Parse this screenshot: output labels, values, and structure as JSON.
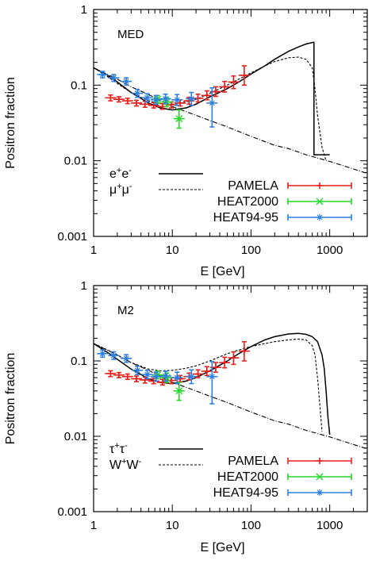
{
  "chart_data": [
    {
      "type": "line",
      "panel_label": "MED",
      "xlabel": "E [GeV]",
      "ylabel": "Positron fraction",
      "xscale": "log",
      "yscale": "log",
      "xlim": [
        1,
        3000
      ],
      "ylim": [
        0.001,
        1
      ],
      "x_ticks": [
        1,
        10,
        100,
        1000
      ],
      "x_tick_labels": [
        "1",
        "10",
        "100",
        "1000"
      ],
      "y_ticks": [
        0.001,
        0.01,
        0.1,
        1
      ],
      "y_tick_labels": [
        "0.001",
        "0.01",
        "0.1",
        "1"
      ],
      "legend_left_position": "bottom-left",
      "legend_right_position": "bottom-right",
      "model_legend": [
        {
          "label": "e⁺e⁻",
          "base1": "e",
          "sup1": "+",
          "base2": "e",
          "sup2": "-",
          "style": "solid"
        },
        {
          "label": "μ⁺μ⁻",
          "base1": "μ",
          "sup1": "+",
          "base2": "μ",
          "sup2": "-",
          "style": "dashed"
        }
      ],
      "curves": [
        {
          "style": "solid",
          "x": [
            1,
            1.5,
            2,
            3,
            5,
            7,
            10,
            15,
            20,
            30,
            50,
            70,
            100,
            150,
            200,
            300,
            400,
            500,
            630,
            630.5,
            1000
          ],
          "y": [
            0.17,
            0.135,
            0.11,
            0.08,
            0.058,
            0.05,
            0.047,
            0.05,
            0.056,
            0.07,
            0.09,
            0.11,
            0.14,
            0.18,
            0.22,
            0.28,
            0.32,
            0.35,
            0.37,
            0.012,
            0.012
          ]
        },
        {
          "style": "dashed",
          "x": [
            1,
            1.5,
            2,
            3,
            5,
            7,
            10,
            15,
            20,
            30,
            50,
            70,
            100,
            150,
            200,
            300,
            400,
            500,
            600,
            650,
            700,
            800,
            900
          ],
          "y": [
            0.17,
            0.13,
            0.105,
            0.08,
            0.062,
            0.057,
            0.056,
            0.06,
            0.065,
            0.078,
            0.1,
            0.12,
            0.145,
            0.18,
            0.205,
            0.23,
            0.235,
            0.22,
            0.17,
            0.09,
            0.04,
            0.015,
            0.01
          ]
        },
        {
          "style": "dashdot",
          "x": [
            1,
            2,
            3,
            5,
            10,
            20,
            30,
            50,
            100,
            200,
            300,
            500,
            1000,
            2000,
            3000
          ],
          "y": [
            0.17,
            0.12,
            0.095,
            0.075,
            0.052,
            0.04,
            0.034,
            0.028,
            0.021,
            0.016,
            0.0145,
            0.012,
            0.0098,
            0.0078,
            0.0068
          ]
        }
      ],
      "series": [
        {
          "name": "PAMELA",
          "color": "#e8201c",
          "marker": "plus",
          "points": [
            {
              "x": 1.64,
              "y": 0.068,
              "lo": 0.062,
              "hi": 0.074
            },
            {
              "x": 2.1,
              "y": 0.065,
              "lo": 0.06,
              "hi": 0.07
            },
            {
              "x": 2.7,
              "y": 0.062,
              "lo": 0.057,
              "hi": 0.067
            },
            {
              "x": 3.5,
              "y": 0.058,
              "lo": 0.053,
              "hi": 0.063
            },
            {
              "x": 4.5,
              "y": 0.056,
              "lo": 0.051,
              "hi": 0.061
            },
            {
              "x": 5.8,
              "y": 0.054,
              "lo": 0.05,
              "hi": 0.059
            },
            {
              "x": 7.5,
              "y": 0.052,
              "lo": 0.048,
              "hi": 0.057
            },
            {
              "x": 9.7,
              "y": 0.055,
              "lo": 0.05,
              "hi": 0.06
            },
            {
              "x": 12.6,
              "y": 0.058,
              "lo": 0.053,
              "hi": 0.064
            },
            {
              "x": 16.3,
              "y": 0.062,
              "lo": 0.056,
              "hi": 0.069
            },
            {
              "x": 21.2,
              "y": 0.067,
              "lo": 0.06,
              "hi": 0.076
            },
            {
              "x": 27.5,
              "y": 0.073,
              "lo": 0.064,
              "hi": 0.084
            },
            {
              "x": 35.6,
              "y": 0.082,
              "lo": 0.071,
              "hi": 0.095
            },
            {
              "x": 46.2,
              "y": 0.095,
              "lo": 0.081,
              "hi": 0.112
            },
            {
              "x": 60,
              "y": 0.11,
              "lo": 0.09,
              "hi": 0.132
            },
            {
              "x": 82,
              "y": 0.135,
              "lo": 0.1,
              "hi": 0.18
            }
          ]
        },
        {
          "name": "HEAT2000",
          "color": "#27d62a",
          "marker": "cross",
          "points": [
            {
              "x": 6.5,
              "y": 0.065,
              "lo": 0.058,
              "hi": 0.073
            },
            {
              "x": 8.5,
              "y": 0.06,
              "lo": 0.052,
              "hi": 0.069
            },
            {
              "x": 12.2,
              "y": 0.036,
              "lo": 0.027,
              "hi": 0.047
            }
          ]
        },
        {
          "name": "HEAT94-95",
          "color": "#2d7fe0",
          "marker": "star",
          "points": [
            {
              "x": 1.3,
              "y": 0.138,
              "lo": 0.125,
              "hi": 0.152
            },
            {
              "x": 1.8,
              "y": 0.125,
              "lo": 0.112,
              "hi": 0.138
            },
            {
              "x": 2.6,
              "y": 0.112,
              "lo": 0.1,
              "hi": 0.125
            },
            {
              "x": 3.6,
              "y": 0.078,
              "lo": 0.069,
              "hi": 0.088
            },
            {
              "x": 4.8,
              "y": 0.068,
              "lo": 0.06,
              "hi": 0.077
            },
            {
              "x": 6.2,
              "y": 0.064,
              "lo": 0.056,
              "hi": 0.073
            },
            {
              "x": 8.2,
              "y": 0.066,
              "lo": 0.057,
              "hi": 0.076
            },
            {
              "x": 11.5,
              "y": 0.064,
              "lo": 0.054,
              "hi": 0.075
            },
            {
              "x": 17.5,
              "y": 0.066,
              "lo": 0.054,
              "hi": 0.08
            },
            {
              "x": 32,
              "y": 0.058,
              "lo": 0.028,
              "hi": 0.092
            }
          ]
        }
      ]
    },
    {
      "type": "line",
      "panel_label": "M2",
      "xlabel": "E [GeV]",
      "ylabel": "Positron fraction",
      "xscale": "log",
      "yscale": "log",
      "xlim": [
        1,
        3000
      ],
      "ylim": [
        0.001,
        1
      ],
      "x_ticks": [
        1,
        10,
        100,
        1000
      ],
      "x_tick_labels": [
        "1",
        "10",
        "100",
        "1000"
      ],
      "y_ticks": [
        0.001,
        0.01,
        0.1,
        1
      ],
      "y_tick_labels": [
        "0.001",
        "0.01",
        "0.1",
        "1"
      ],
      "legend_left_position": "bottom-left",
      "legend_right_position": "bottom-right",
      "model_legend": [
        {
          "label": "τ⁺τ⁻",
          "base1": "τ",
          "sup1": "+",
          "base2": "τ",
          "sup2": "-",
          "style": "solid"
        },
        {
          "label": "W⁺W⁻",
          "base1": "W",
          "sup1": "+",
          "base2": "W",
          "sup2": "-",
          "style": "dashed"
        }
      ],
      "curves": [
        {
          "style": "solid",
          "x": [
            1,
            1.5,
            2,
            3,
            5,
            7,
            10,
            15,
            20,
            30,
            50,
            70,
            100,
            150,
            200,
            300,
            400,
            500,
            600,
            700,
            800,
            850,
            900,
            950,
            1000
          ],
          "y": [
            0.17,
            0.13,
            0.105,
            0.078,
            0.058,
            0.052,
            0.05,
            0.054,
            0.06,
            0.074,
            0.1,
            0.125,
            0.155,
            0.19,
            0.21,
            0.228,
            0.232,
            0.225,
            0.21,
            0.18,
            0.12,
            0.08,
            0.04,
            0.018,
            0.0105
          ]
        },
        {
          "style": "dashed",
          "x": [
            1,
            1.5,
            2,
            3,
            5,
            7,
            10,
            15,
            20,
            30,
            50,
            70,
            100,
            150,
            200,
            300,
            400,
            500,
            600,
            650,
            700,
            750,
            800
          ],
          "y": [
            0.17,
            0.14,
            0.12,
            0.095,
            0.078,
            0.074,
            0.075,
            0.08,
            0.086,
            0.1,
            0.125,
            0.14,
            0.155,
            0.17,
            0.18,
            0.19,
            0.195,
            0.19,
            0.16,
            0.12,
            0.06,
            0.025,
            0.0115
          ]
        },
        {
          "style": "dashdot",
          "x": [
            1,
            2,
            3,
            5,
            10,
            20,
            30,
            50,
            100,
            200,
            300,
            500,
            1000,
            2000,
            3000
          ],
          "y": [
            0.17,
            0.12,
            0.095,
            0.075,
            0.052,
            0.04,
            0.034,
            0.028,
            0.021,
            0.016,
            0.0145,
            0.012,
            0.0098,
            0.0078,
            0.0068
          ]
        }
      ],
      "series": [
        {
          "name": "PAMELA",
          "color": "#e8201c",
          "marker": "plus",
          "points": [
            {
              "x": 1.64,
              "y": 0.068,
              "lo": 0.062,
              "hi": 0.074
            },
            {
              "x": 2.1,
              "y": 0.065,
              "lo": 0.06,
              "hi": 0.07
            },
            {
              "x": 2.7,
              "y": 0.062,
              "lo": 0.057,
              "hi": 0.067
            },
            {
              "x": 3.5,
              "y": 0.058,
              "lo": 0.053,
              "hi": 0.063
            },
            {
              "x": 4.5,
              "y": 0.056,
              "lo": 0.051,
              "hi": 0.061
            },
            {
              "x": 5.8,
              "y": 0.054,
              "lo": 0.05,
              "hi": 0.059
            },
            {
              "x": 7.5,
              "y": 0.052,
              "lo": 0.048,
              "hi": 0.057
            },
            {
              "x": 9.7,
              "y": 0.055,
              "lo": 0.05,
              "hi": 0.06
            },
            {
              "x": 12.6,
              "y": 0.058,
              "lo": 0.053,
              "hi": 0.064
            },
            {
              "x": 16.3,
              "y": 0.062,
              "lo": 0.056,
              "hi": 0.069
            },
            {
              "x": 21.2,
              "y": 0.067,
              "lo": 0.06,
              "hi": 0.076
            },
            {
              "x": 27.5,
              "y": 0.073,
              "lo": 0.064,
              "hi": 0.084
            },
            {
              "x": 35.6,
              "y": 0.082,
              "lo": 0.071,
              "hi": 0.095
            },
            {
              "x": 46.2,
              "y": 0.095,
              "lo": 0.081,
              "hi": 0.112
            },
            {
              "x": 60,
              "y": 0.11,
              "lo": 0.09,
              "hi": 0.132
            },
            {
              "x": 82,
              "y": 0.135,
              "lo": 0.1,
              "hi": 0.18
            }
          ]
        },
        {
          "name": "HEAT2000",
          "color": "#27d62a",
          "marker": "cross",
          "points": [
            {
              "x": 6.5,
              "y": 0.065,
              "lo": 0.058,
              "hi": 0.073
            },
            {
              "x": 8.5,
              "y": 0.06,
              "lo": 0.052,
              "hi": 0.069
            },
            {
              "x": 12.2,
              "y": 0.04,
              "lo": 0.03,
              "hi": 0.052
            }
          ]
        },
        {
          "name": "HEAT94-95",
          "color": "#2d7fe0",
          "marker": "star",
          "points": [
            {
              "x": 1.3,
              "y": 0.125,
              "lo": 0.112,
              "hi": 0.14
            },
            {
              "x": 1.8,
              "y": 0.118,
              "lo": 0.105,
              "hi": 0.132
            },
            {
              "x": 2.6,
              "y": 0.108,
              "lo": 0.096,
              "hi": 0.121
            },
            {
              "x": 3.6,
              "y": 0.075,
              "lo": 0.066,
              "hi": 0.085
            },
            {
              "x": 4.8,
              "y": 0.066,
              "lo": 0.058,
              "hi": 0.075
            },
            {
              "x": 6.2,
              "y": 0.062,
              "lo": 0.054,
              "hi": 0.071
            },
            {
              "x": 8.2,
              "y": 0.063,
              "lo": 0.054,
              "hi": 0.073
            },
            {
              "x": 11.5,
              "y": 0.06,
              "lo": 0.05,
              "hi": 0.071
            },
            {
              "x": 17.5,
              "y": 0.062,
              "lo": 0.05,
              "hi": 0.076
            },
            {
              "x": 32,
              "y": 0.062,
              "lo": 0.027,
              "hi": 0.098
            }
          ]
        }
      ]
    }
  ]
}
